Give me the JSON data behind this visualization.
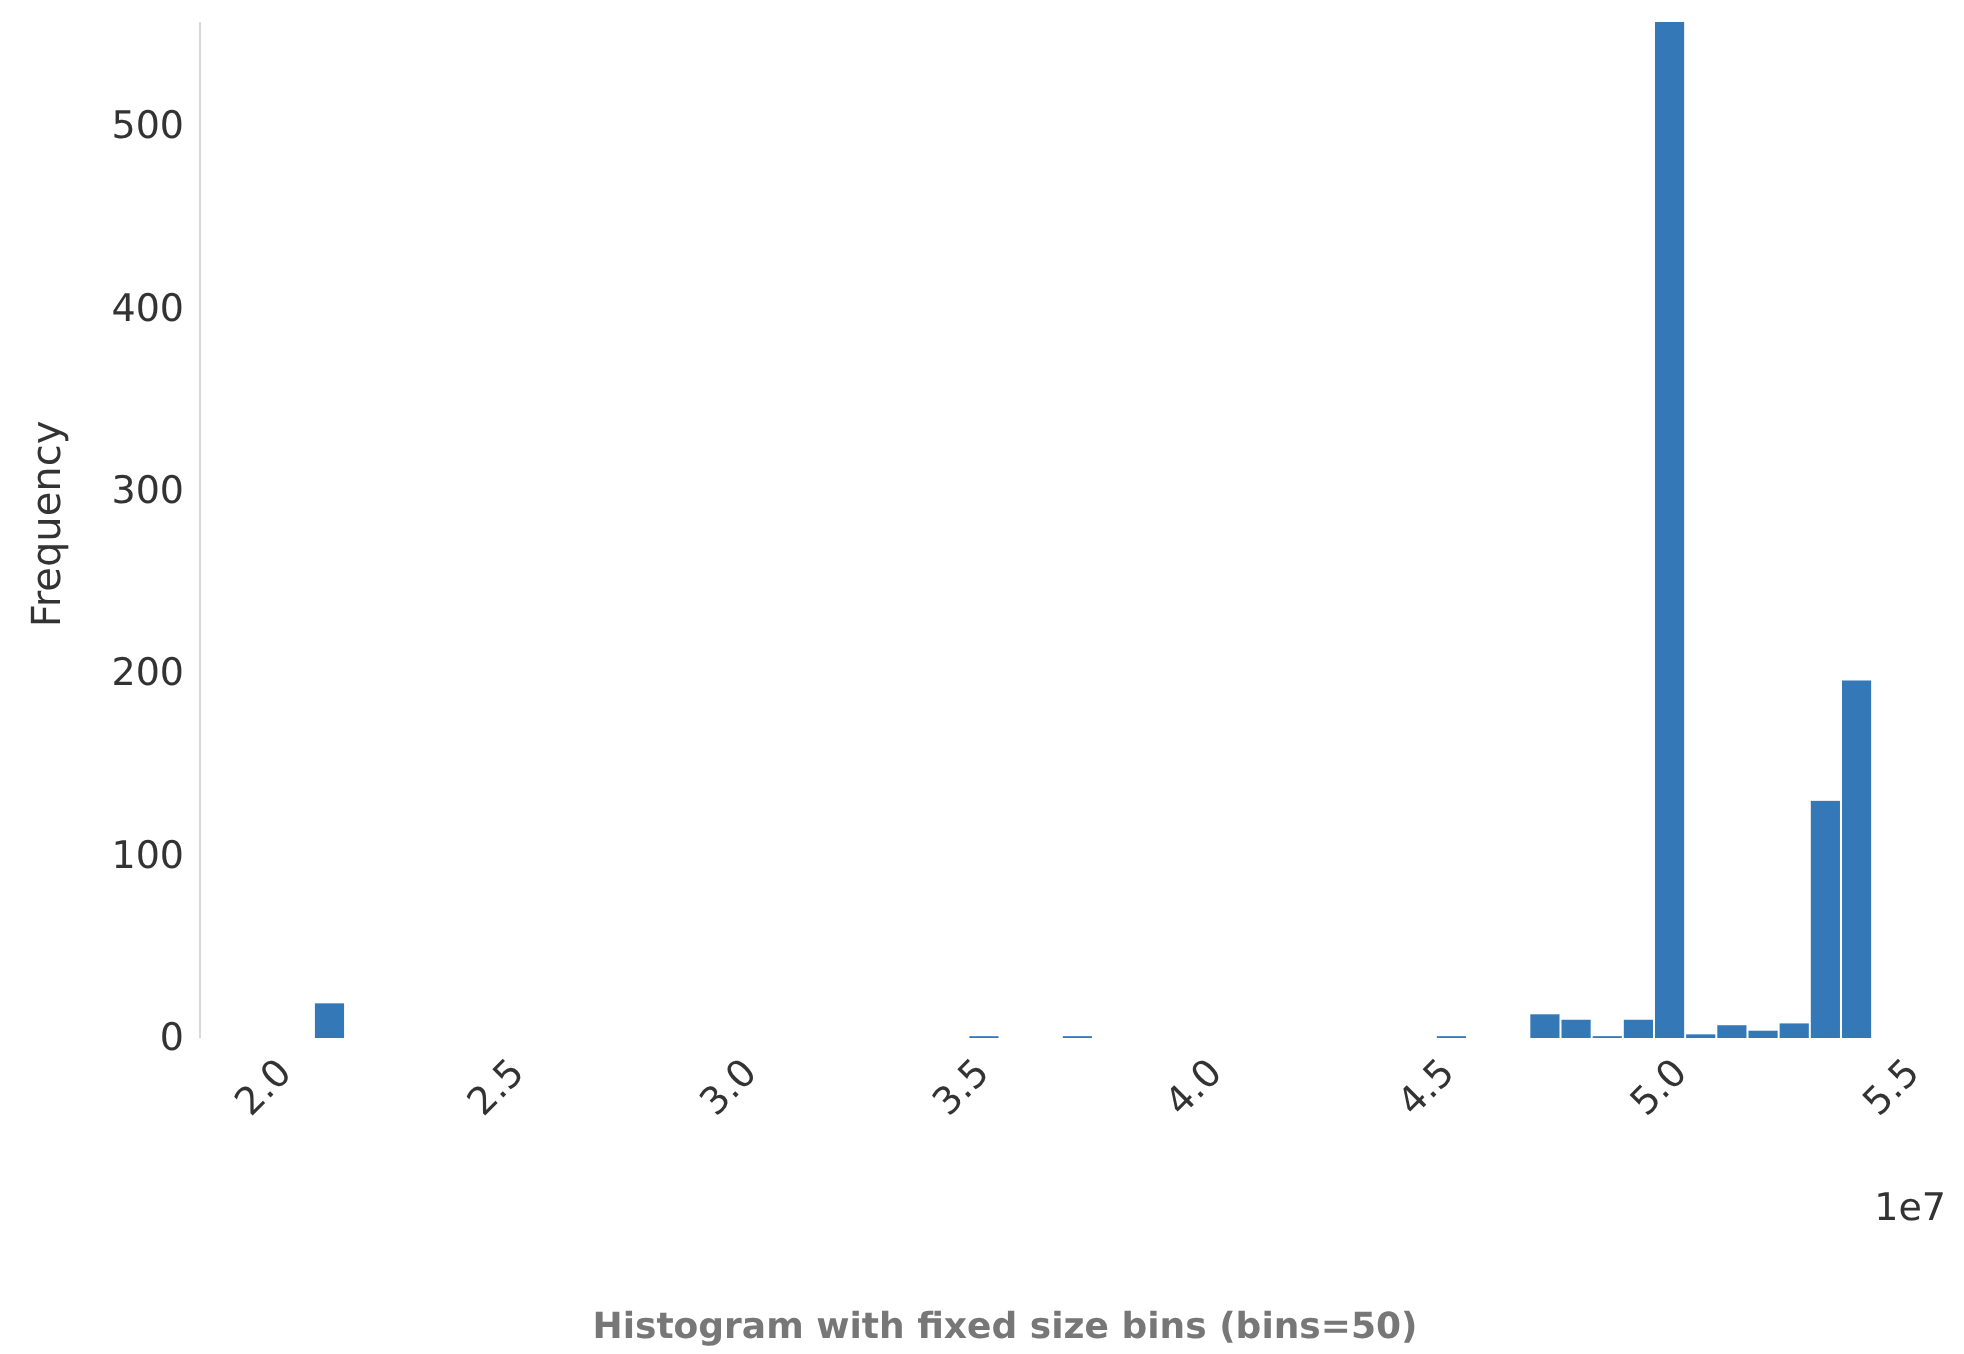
{
  "chart_data": {
    "type": "histogram",
    "title": "Histogram with fixed size bins (bins=50)",
    "ylabel": "Frequency",
    "color": "#3478b8",
    "bins": [
      2.06,
      2.127,
      2.194,
      2.261,
      2.328,
      2.395,
      2.462,
      2.529,
      2.596,
      2.663,
      2.73,
      2.797,
      2.864,
      2.931,
      2.998,
      3.065,
      3.132,
      3.199,
      3.266,
      3.333,
      3.4,
      3.467,
      3.534,
      3.601,
      3.668,
      3.735,
      3.802,
      3.869,
      3.936,
      4.003,
      4.07,
      4.137,
      4.204,
      4.271,
      4.338,
      4.405,
      4.472,
      4.539,
      4.606,
      4.673,
      4.74,
      4.807,
      4.874,
      4.941,
      5.008,
      5.075,
      5.142,
      5.209,
      5.276,
      5.343,
      5.41
    ],
    "values": [
      19,
      0,
      0,
      0,
      0,
      0,
      0,
      0,
      0,
      0,
      0,
      0,
      0,
      0,
      0,
      0,
      0,
      0,
      0,
      0,
      0,
      1,
      0,
      0,
      1,
      0,
      0,
      0,
      0,
      0,
      0,
      0,
      0,
      0,
      0,
      0,
      1,
      0,
      0,
      13,
      10,
      1,
      10,
      557,
      2,
      7,
      4,
      8,
      130,
      196
    ],
    "xticks": [
      {
        "value": 2,
        "label": "2.0"
      },
      {
        "value": 2.5,
        "label": "2.5"
      },
      {
        "value": 3,
        "label": "3.0"
      },
      {
        "value": 3.5,
        "label": "3.5"
      },
      {
        "value": 4,
        "label": "4.0"
      },
      {
        "value": 4.5,
        "label": "4.5"
      },
      {
        "value": 5,
        "label": "5.0"
      },
      {
        "value": 5.5,
        "label": "5.5"
      }
    ],
    "xlim": [
      2,
      5.5
    ],
    "ylim": [
      0,
      557
    ],
    "yticks": [
      0,
      100,
      200,
      300,
      400,
      500
    ],
    "annotations": [
      "1e7"
    ],
    "grid": false
  }
}
